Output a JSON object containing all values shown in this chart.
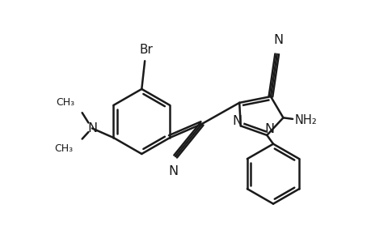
{
  "background_color": "#ffffff",
  "line_color": "#1a1a1a",
  "line_width": 1.8,
  "figsize": [
    4.6,
    3.0
  ],
  "dpi": 100,
  "xlim": [
    0,
    460
  ],
  "ylim": [
    0,
    300
  ]
}
